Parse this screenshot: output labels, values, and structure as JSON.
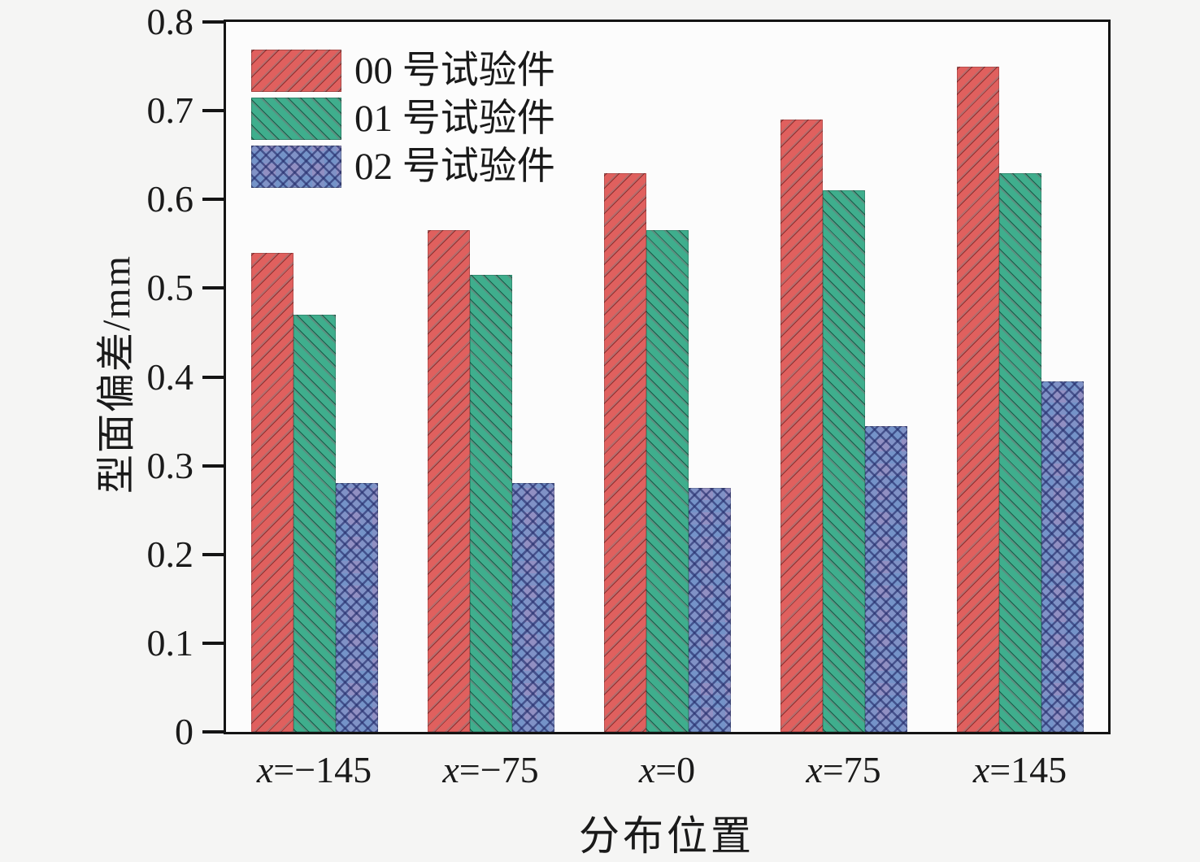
{
  "figure": {
    "background": "#f5f5f4",
    "plot_background": "#fcfcfc",
    "axis_color": "#141414"
  },
  "chart_data": {
    "type": "bar",
    "title": "",
    "xlabel": "分布位置",
    "ylabel": "型面偏差/mm",
    "categories": [
      "x=−145",
      "x=−75",
      "x=0",
      "x=75",
      "x=145"
    ],
    "series": [
      {
        "name": "00 号试验件",
        "color": "#e0605e",
        "hatch": "/",
        "values": [
          0.54,
          0.565,
          0.63,
          0.69,
          0.75
        ]
      },
      {
        "name": "01 号试验件",
        "color": "#3fae8d",
        "hatch": "\\",
        "values": [
          0.47,
          0.515,
          0.565,
          0.61,
          0.63
        ]
      },
      {
        "name": "02 号试验件",
        "color": "#918fc2",
        "hatch": "x",
        "values": [
          0.28,
          0.28,
          0.275,
          0.345,
          0.395
        ]
      }
    ],
    "ylim": [
      0,
      0.8
    ],
    "ytick_step": 0.1,
    "yticks": [
      "0",
      "0.1",
      "0.2",
      "0.3",
      "0.4",
      "0.5",
      "0.6",
      "0.7",
      "0.8"
    ],
    "legend_position": "upper left",
    "grid": false
  }
}
